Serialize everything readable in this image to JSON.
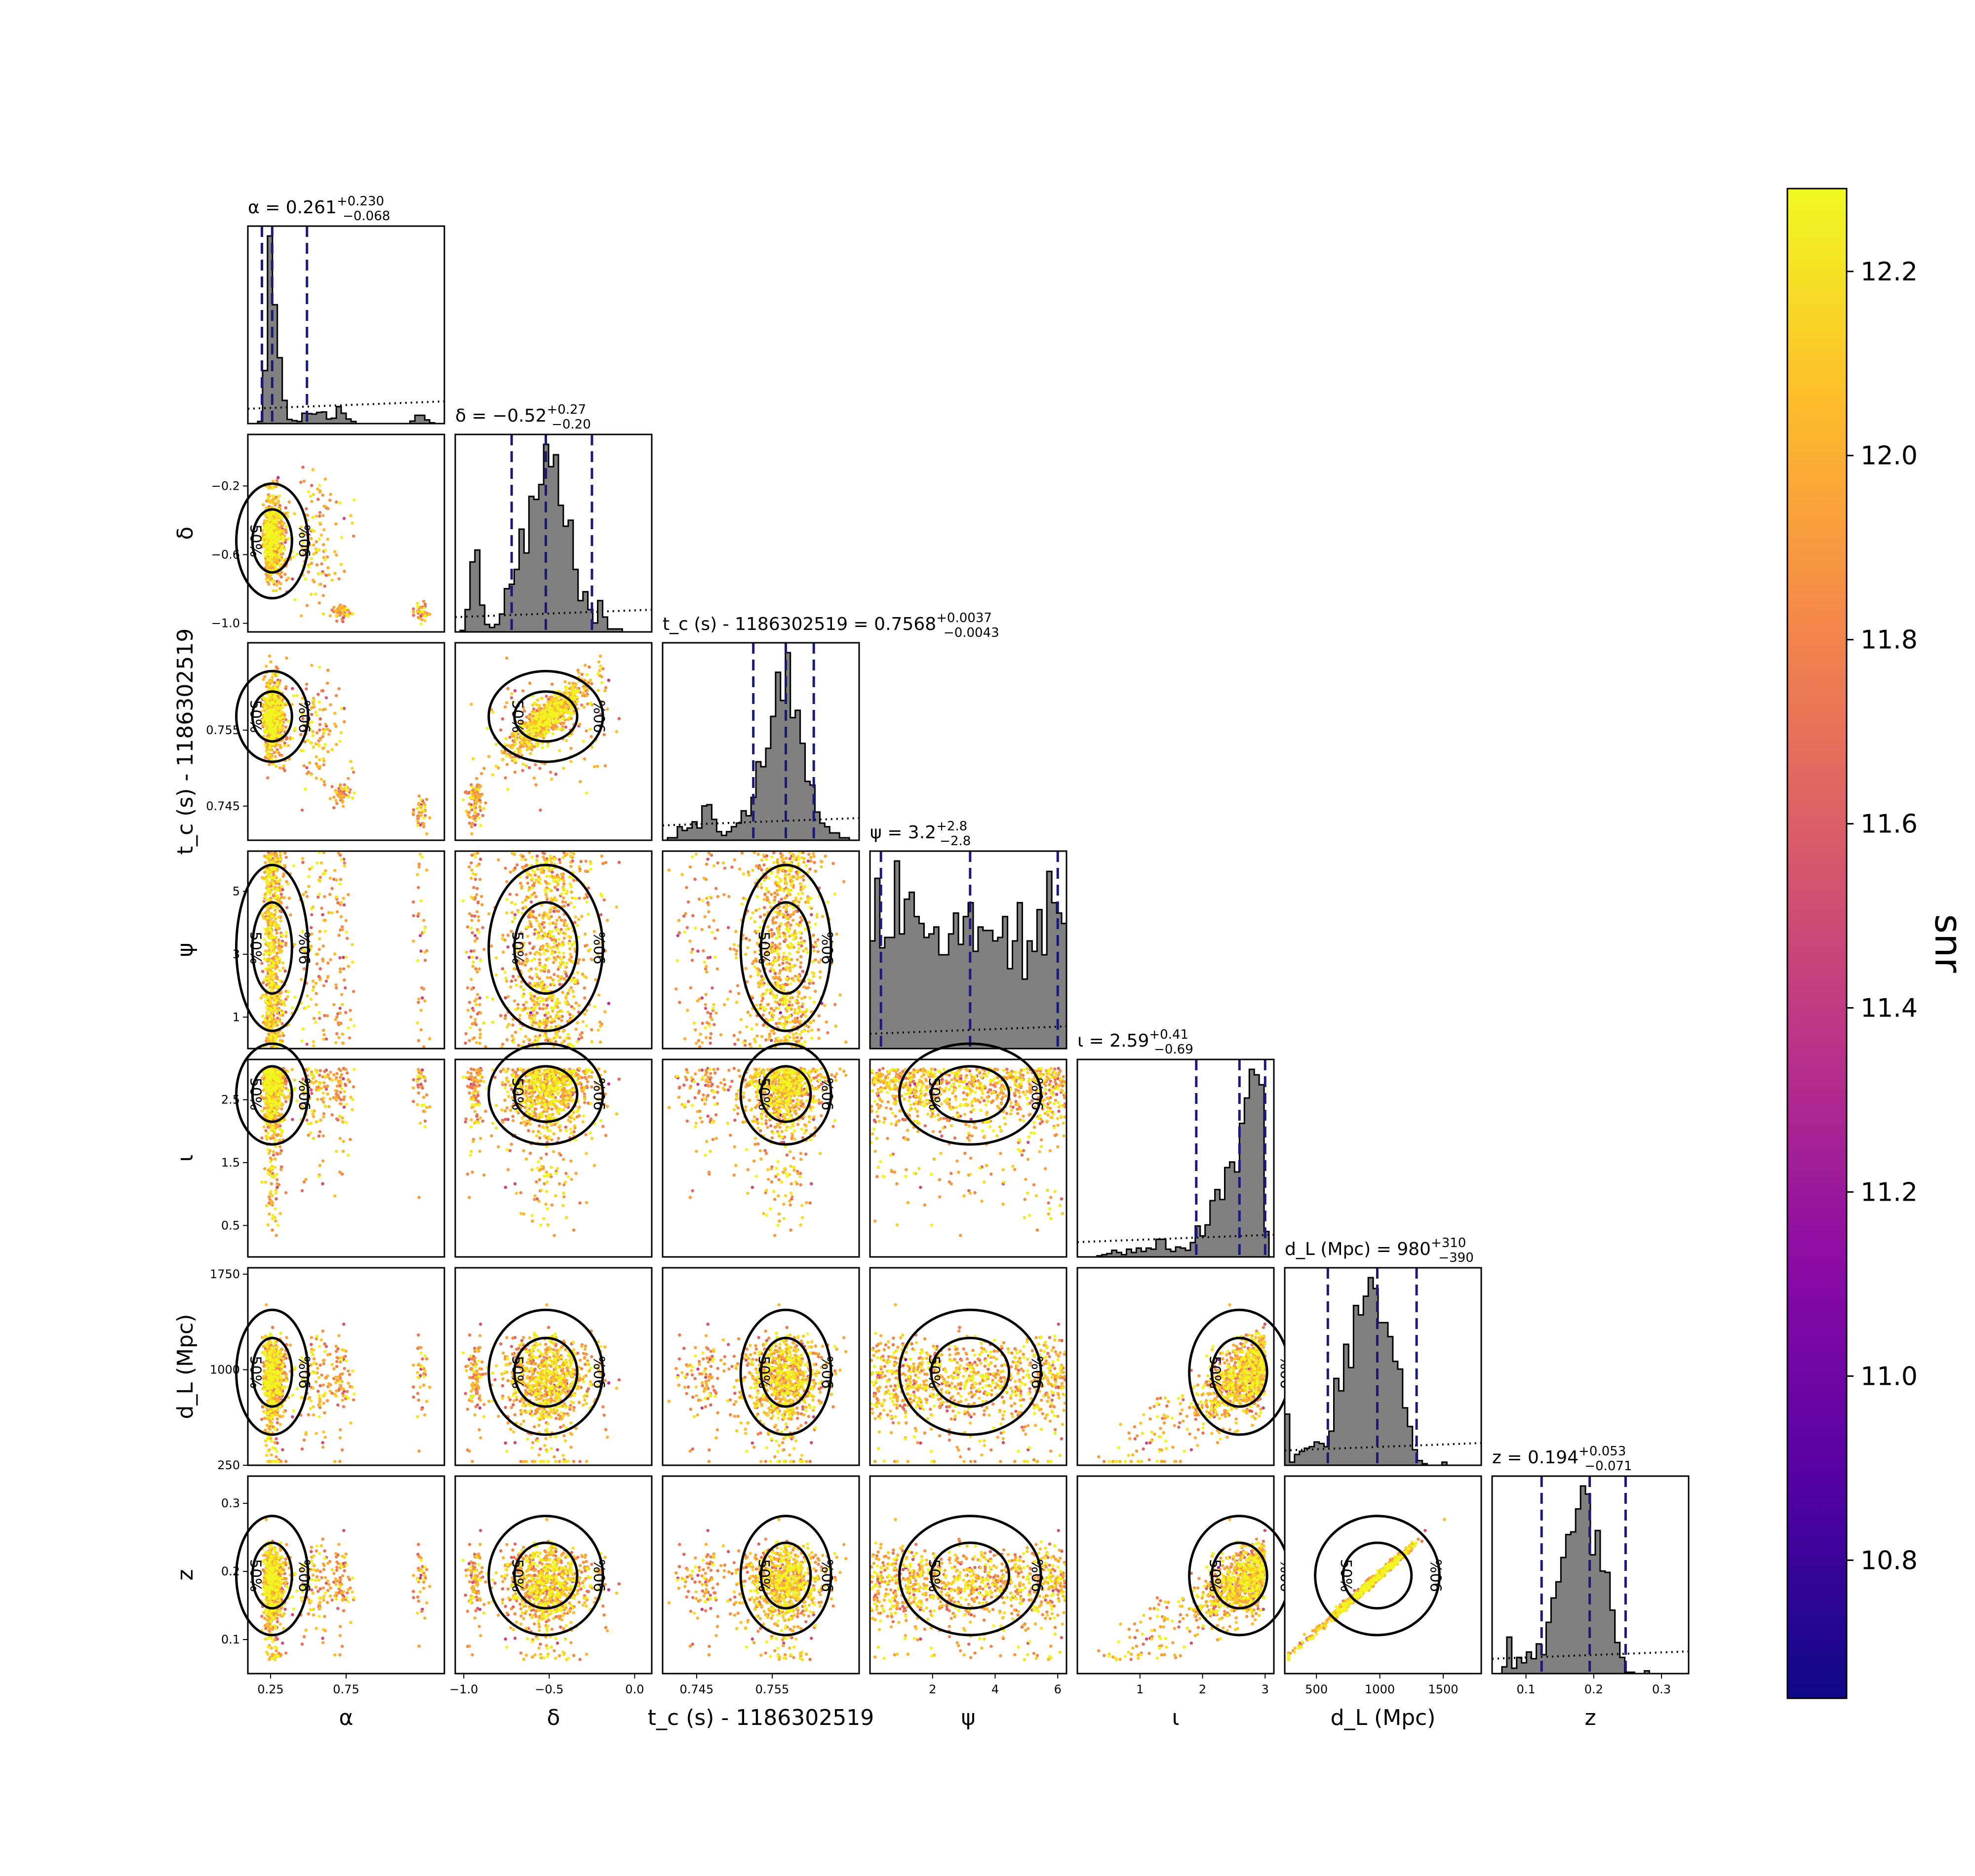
{
  "chart_data": {
    "type": "scatter",
    "kind": "corner plot (posterior samples colored by snr)",
    "parameters": [
      {
        "key": "alpha",
        "label": "α",
        "range": [
          0.1,
          1.4
        ],
        "ticks": [
          0.25,
          0.75
        ],
        "tick_labels": [
          "0.25",
          "0.75"
        ],
        "title": "α = 0.261",
        "title_plus": "+0.230",
        "title_minus": "−0.068",
        "median": 0.261,
        "lower": 0.193,
        "upper": 0.491
      },
      {
        "key": "delta",
        "label": "δ",
        "range": [
          -1.05,
          0.1
        ],
        "ticks": [
          -1.0,
          -0.5,
          0.0
        ],
        "tick_labels": [
          "−1.0",
          "−0.5",
          "0.0"
        ],
        "ytick_labels": [
          "−1.0",
          "−0.6",
          "−0.2"
        ],
        "yticks": [
          -1.0,
          -0.6,
          -0.2
        ],
        "title": "δ = −0.52",
        "title_plus": "+0.27",
        "title_minus": "−0.20",
        "median": -0.52,
        "lower": -0.72,
        "upper": -0.25
      },
      {
        "key": "tc",
        "label": "t_c (s) - 1186302519",
        "range": [
          0.7405,
          0.7665
        ],
        "ticks": [
          0.745,
          0.755
        ],
        "tick_labels": [
          "0.745",
          "0.755"
        ],
        "title": "t_c (s) - 1186302519 = 0.7568",
        "title_plus": "+0.0037",
        "title_minus": "−0.0043",
        "median": 0.7568,
        "lower": 0.7525,
        "upper": 0.7605
      },
      {
        "key": "psi",
        "label": "ψ",
        "range": [
          0.0,
          6.28
        ],
        "ticks": [
          2,
          4,
          6
        ],
        "tick_labels": [
          "2",
          "4",
          "6"
        ],
        "yticks": [
          1,
          3,
          5
        ],
        "ytick_labels": [
          "1",
          "3",
          "5"
        ],
        "title": "ψ = 3.2",
        "title_plus": "+2.8",
        "title_minus": "−2.8",
        "median": 3.2,
        "lower": 0.35,
        "upper": 6.0
      },
      {
        "key": "iota",
        "label": "ι",
        "range": [
          0.0,
          3.14
        ],
        "ticks": [
          1,
          2,
          3
        ],
        "tick_labels": [
          "1",
          "2",
          "3"
        ],
        "yticks": [
          0.5,
          1.5,
          2.5
        ],
        "ytick_labels": [
          "0.5",
          "1.5",
          "2.5"
        ],
        "title": "ι = 2.59",
        "title_plus": "+0.41",
        "title_minus": "−0.69",
        "median": 2.59,
        "lower": 1.9,
        "upper": 3.0
      },
      {
        "key": "dl",
        "label": "d_L (Mpc)",
        "range": [
          250,
          1800
        ],
        "ticks": [
          500,
          1000,
          1500
        ],
        "tick_labels": [
          "500",
          "1000",
          "1500"
        ],
        "yticks": [
          250,
          1000,
          1750
        ],
        "ytick_labels": [
          "250",
          "1000",
          "1750"
        ],
        "title": "d_L (Mpc) = 980",
        "title_plus": "+310",
        "title_minus": "−390",
        "median": 980,
        "lower": 590,
        "upper": 1290
      },
      {
        "key": "z",
        "label": "z",
        "range": [
          0.05,
          0.34
        ],
        "ticks": [
          0.1,
          0.2,
          0.3
        ],
        "tick_labels": [
          "0.1",
          "0.2",
          "0.3"
        ],
        "yticks": [
          0.1,
          0.2,
          0.3
        ],
        "ytick_labels": [
          "0.1",
          "0.2",
          "0.3"
        ],
        "title": "z = 0.194",
        "title_plus": "+0.053",
        "title_minus": "−0.071",
        "median": 0.194,
        "lower": 0.123,
        "upper": 0.247
      }
    ],
    "contour_levels": [
      "50%",
      "90%"
    ],
    "colorbar": {
      "label": "snr",
      "min": 10.65,
      "max": 12.29,
      "ticks": [
        10.8,
        11.0,
        11.2,
        11.4,
        11.6,
        11.8,
        12.0,
        12.2
      ],
      "tick_labels": [
        "10.8",
        "11.0",
        "11.2",
        "11.4",
        "11.6",
        "11.8",
        "12.0",
        "12.2"
      ],
      "colormap": "plasma"
    },
    "colors": {
      "hist_fill": "#808080",
      "quantile_line": "#1a1a7a",
      "contour": "#000000",
      "prior_line": "#000000"
    }
  }
}
